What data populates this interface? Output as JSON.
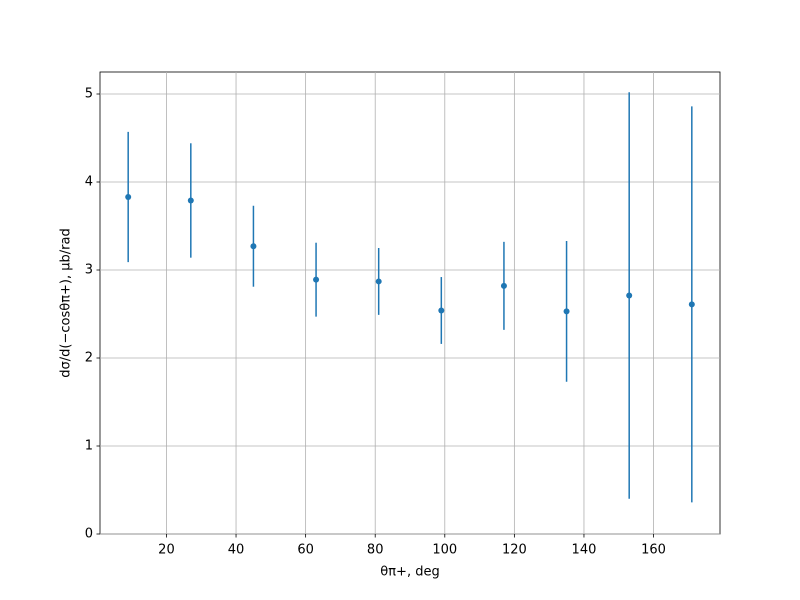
{
  "chart_data": {
    "type": "errorbar",
    "x_label": "θπ+, deg",
    "y_label": "dσ/d(−cosθπ+), μb/rad",
    "x": [
      9,
      27,
      45,
      63,
      81,
      99,
      117,
      135,
      153,
      171
    ],
    "series": [
      {
        "color": "#1f77b4",
        "values": [
          3.83,
          3.79,
          3.27,
          2.89,
          2.87,
          2.54,
          2.82,
          2.53,
          2.71,
          2.61
        ],
        "errors": [
          0.74,
          0.65,
          0.46,
          0.42,
          0.38,
          0.38,
          0.5,
          0.8,
          2.31,
          2.25
        ]
      }
    ],
    "xlim": [
      0.9,
      179.1
    ],
    "xticks": [
      20,
      40,
      60,
      80,
      100,
      120,
      140,
      160
    ],
    "ylim": [
      0,
      5.25
    ],
    "yticks": [
      0,
      1,
      2,
      3,
      4,
      5
    ],
    "grid": true
  }
}
